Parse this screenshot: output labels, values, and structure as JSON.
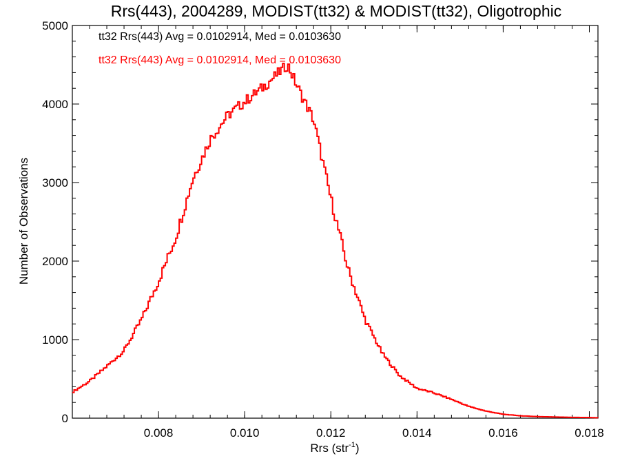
{
  "chart_data": {
    "type": "step-histogram",
    "title": "Rrs(443), 2004289, MODIST(tt32) & MODIST(tt32), Oligotrophic",
    "xlabel_main": "Rrs (str",
    "xlabel_sup": "-1",
    "xlabel_close": ")",
    "ylabel": "Number of Observations",
    "xlim": [
      0.006,
      0.0182
    ],
    "ylim": [
      0,
      5000
    ],
    "xticks": [
      0.008,
      0.01,
      0.012,
      0.014,
      0.016,
      0.018
    ],
    "xtick_labels": [
      "0.008",
      "0.010",
      "0.012",
      "0.014",
      "0.016",
      "0.018"
    ],
    "yticks": [
      0,
      1000,
      2000,
      3000,
      4000,
      5000
    ],
    "ytick_labels": [
      "0",
      "1000",
      "2000",
      "3000",
      "4000",
      "5000"
    ],
    "annotations": [
      {
        "text": "tt32 Rrs(443) Avg = 0.0102914, Med = 0.0103630",
        "color": "#000000"
      },
      {
        "text": "tt32 Rrs(443) Avg = 0.0102914, Med = 0.0103630",
        "color": "#ff0000"
      }
    ],
    "series": [
      {
        "color": "#ff0000",
        "x": [
          0.006,
          0.0064,
          0.0068,
          0.0072,
          0.0076,
          0.008,
          0.0084,
          0.0088,
          0.0092,
          0.0096,
          0.01,
          0.0104,
          0.0108,
          0.011,
          0.0112,
          0.0116,
          0.012,
          0.0124,
          0.0128,
          0.0132,
          0.0136,
          0.014,
          0.0144,
          0.0148,
          0.0152,
          0.0156,
          0.016,
          0.0164,
          0.0168,
          0.0172,
          0.0176,
          0.018,
          0.0182
        ],
        "y": [
          330,
          470,
          660,
          860,
          1250,
          1740,
          2300,
          3050,
          3550,
          3850,
          4030,
          4200,
          4400,
          4500,
          4250,
          3800,
          2800,
          1900,
          1250,
          820,
          540,
          380,
          320,
          240,
          150,
          90,
          50,
          30,
          20,
          15,
          10,
          8,
          5
        ]
      }
    ]
  }
}
